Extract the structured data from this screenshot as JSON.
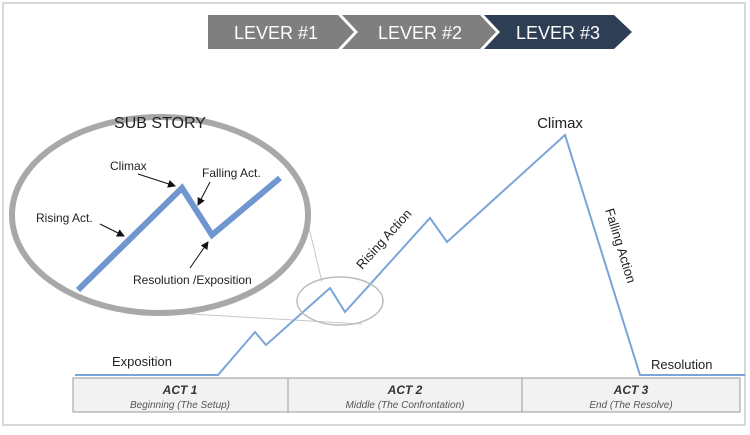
{
  "levers": [
    "LEVER #1",
    "LEVER #2",
    "LEVER #3"
  ],
  "sub_story": {
    "title": "SUB STORY",
    "climax": "Climax",
    "falling": "Falling Act.",
    "rising": "Rising Act.",
    "resolution": "Resolution /Exposition"
  },
  "main": {
    "exposition": "Exposition",
    "rising": "Rising Action",
    "climax": "Climax",
    "falling": "Falling Action",
    "resolution": "Resolution"
  },
  "acts": [
    {
      "name": "ACT 1",
      "description": "Beginning (The Setup)"
    },
    {
      "name": "ACT 2",
      "description": "Middle (The Confrontation)"
    },
    {
      "name": "ACT 3",
      "description": "End (The Resolve)"
    }
  ]
}
